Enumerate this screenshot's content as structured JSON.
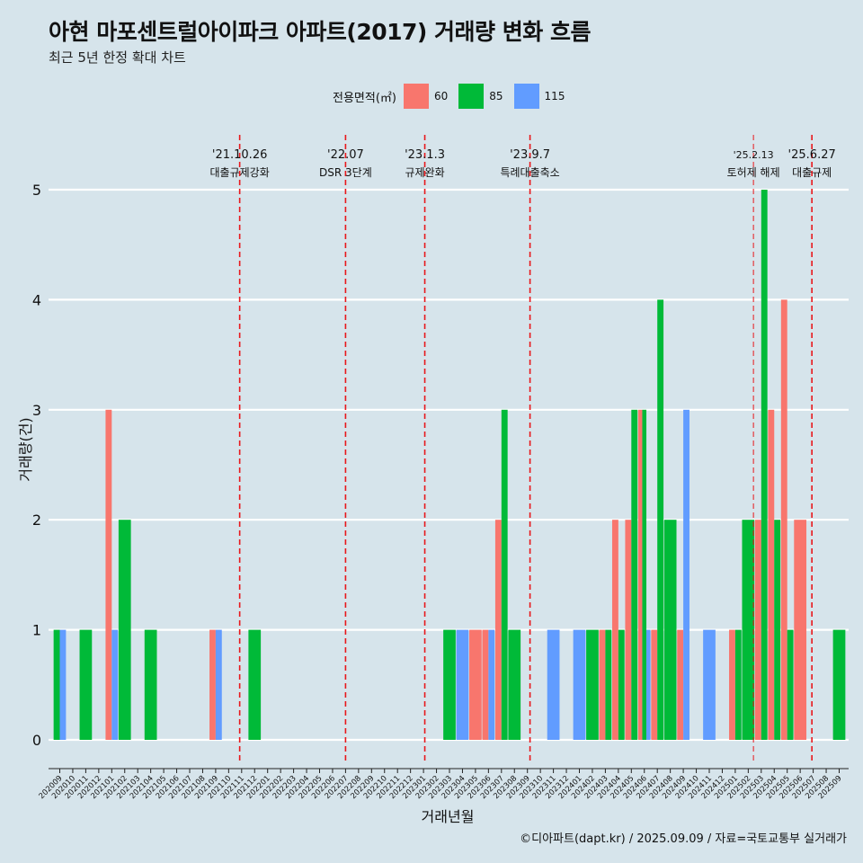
{
  "title": "아현 마포센트럴아이파크 아파트(2017) 거래량 변화 흐름",
  "subtitle": "최근 5년 한정 확대 차트",
  "credit": "©디아파트(dapt.kr) / 2025.09.09 / 자료=국토교통부 실거래가",
  "colors": {
    "s60": "#f8766d",
    "s85": "#00ba38",
    "s115": "#619cff",
    "background": "#d6e4eb",
    "event_line": "#e8171b"
  },
  "legend": {
    "title": "전용면적(㎡)",
    "items": [
      "60",
      "85",
      "115"
    ]
  },
  "chart_data": {
    "type": "bar",
    "xlabel": "거래년월",
    "ylabel": "거래량(건)",
    "ylim": [
      0,
      5
    ],
    "yticks": [
      0,
      1,
      2,
      3,
      4,
      5
    ],
    "grid": true,
    "legend_position": "top",
    "categories": [
      "202009",
      "202010",
      "202011",
      "202012",
      "202101",
      "202102",
      "202103",
      "202104",
      "202105",
      "202106",
      "202107",
      "202108",
      "202109",
      "202110",
      "202111",
      "202112",
      "202201",
      "202202",
      "202203",
      "202204",
      "202205",
      "202206",
      "202207",
      "202208",
      "202209",
      "202210",
      "202211",
      "202212",
      "202301",
      "202302",
      "202303",
      "202304",
      "202305",
      "202306",
      "202307",
      "202308",
      "202309",
      "202310",
      "202311",
      "202312",
      "202401",
      "202402",
      "202403",
      "202404",
      "202405",
      "202406",
      "202407",
      "202408",
      "202409",
      "202410",
      "202411",
      "202412",
      "202501",
      "202502",
      "202503",
      "202504",
      "202505",
      "202506",
      "202507",
      "202508",
      "202509"
    ],
    "series": [
      {
        "name": "60",
        "values": [
          0,
          0,
          0,
          0,
          3,
          0,
          0,
          0,
          0,
          0,
          0,
          0,
          1,
          0,
          0,
          0,
          0,
          0,
          0,
          0,
          0,
          0,
          0,
          0,
          0,
          0,
          0,
          0,
          0,
          0,
          0,
          0,
          1,
          1,
          2,
          0,
          0,
          0,
          0,
          0,
          0,
          0,
          1,
          2,
          2,
          3,
          1,
          0,
          1,
          0,
          0,
          0,
          1,
          0,
          2,
          3,
          4,
          2,
          0,
          0,
          0
        ]
      },
      {
        "name": "85",
        "values": [
          1,
          0,
          1,
          0,
          0,
          2,
          0,
          1,
          0,
          0,
          0,
          0,
          0,
          0,
          0,
          1,
          0,
          0,
          0,
          0,
          0,
          0,
          0,
          0,
          0,
          0,
          0,
          0,
          0,
          0,
          1,
          0,
          0,
          0,
          3,
          1,
          0,
          0,
          0,
          0,
          0,
          1,
          1,
          1,
          3,
          3,
          4,
          2,
          0,
          0,
          0,
          0,
          1,
          2,
          5,
          2,
          1,
          0,
          0,
          0,
          1
        ]
      },
      {
        "name": "115",
        "values": [
          1,
          0,
          0,
          0,
          1,
          0,
          0,
          0,
          0,
          0,
          0,
          0,
          1,
          0,
          0,
          0,
          0,
          0,
          0,
          0,
          0,
          0,
          0,
          0,
          0,
          0,
          0,
          0,
          0,
          0,
          0,
          1,
          0,
          1,
          0,
          0,
          0,
          0,
          1,
          0,
          1,
          0,
          0,
          0,
          0,
          1,
          0,
          0,
          3,
          0,
          1,
          0,
          0,
          0,
          0,
          0,
          0,
          0,
          0,
          0,
          0
        ]
      }
    ],
    "events": [
      {
        "date": "'21.10.26",
        "label": "대출규제강화",
        "x": "202110.85"
      },
      {
        "date": "'22.07",
        "label": "DSR 3단계",
        "x": "202207"
      },
      {
        "date": "'23.1.3",
        "label": "규제완화",
        "x": "202301.1"
      },
      {
        "date": "'23.9.7",
        "label": "특례대출축소",
        "x": "202309.2"
      },
      {
        "date": "'25.2.13",
        "label": "토허제 해제",
        "x": "202502.4"
      },
      {
        "date": "'25.6.27",
        "label": "대출규제",
        "x": "202506.9"
      }
    ]
  }
}
